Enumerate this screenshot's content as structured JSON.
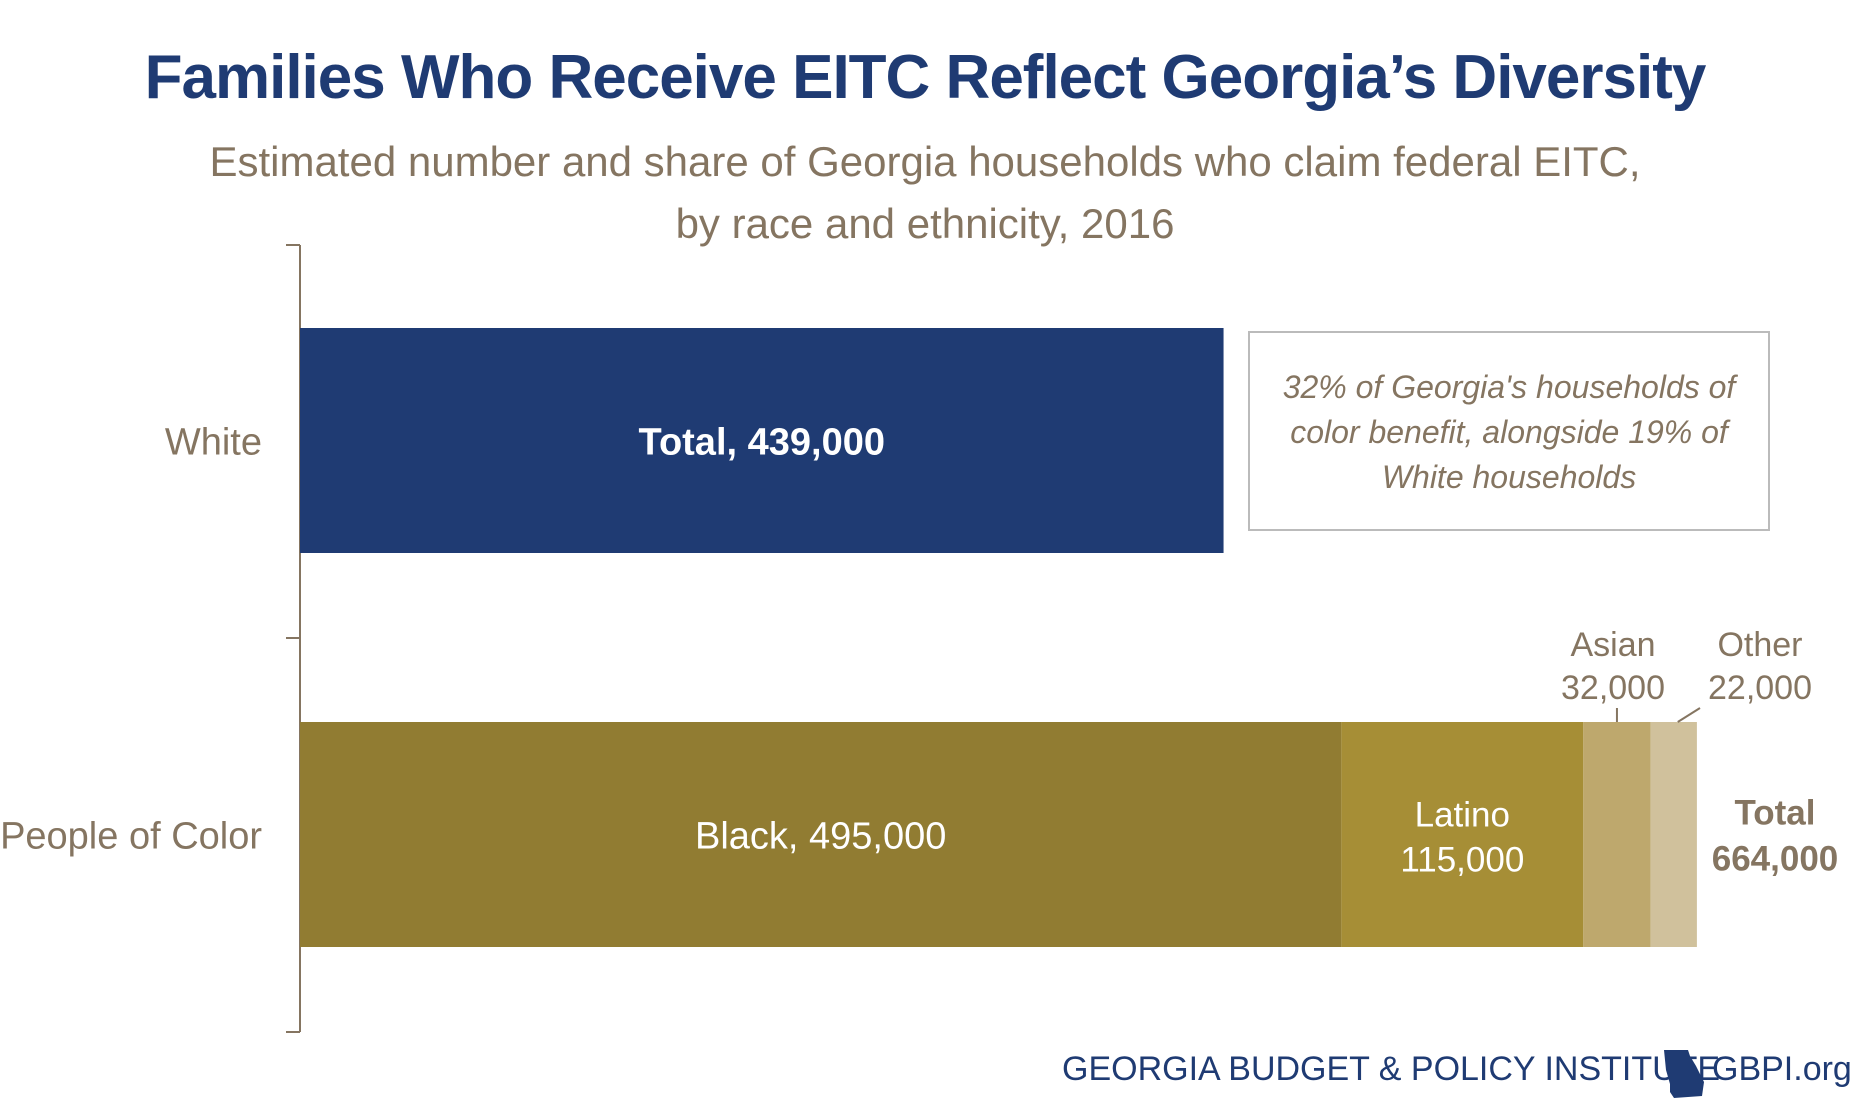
{
  "title": "Families Who Receive EITC Reflect Georgia’s Diversity",
  "subtitle_line1": "Estimated number and share of Georgia households who claim federal EITC,",
  "subtitle_line2": "by race and ethnicity, 2016",
  "colors": {
    "title": "#1f3b73",
    "text": "#857561",
    "white_bar": "#1f3b73",
    "black": "#917c32",
    "latino": "#a68e36",
    "asian": "#bea86d",
    "other": "#d0c19c"
  },
  "chart_data": {
    "type": "bar",
    "orientation": "horizontal",
    "stacked": true,
    "categories": [
      "White",
      "People of Color"
    ],
    "series": [
      {
        "name": "White",
        "values": [
          439000,
          0
        ]
      },
      {
        "name": "Black",
        "values": [
          0,
          495000
        ]
      },
      {
        "name": "Latino",
        "values": [
          0,
          115000
        ]
      },
      {
        "name": "Asian",
        "values": [
          0,
          32000
        ]
      },
      {
        "name": "Other",
        "values": [
          0,
          22000
        ]
      }
    ],
    "xlim": [
      0,
      665000
    ],
    "grid": false,
    "bar_labels": {
      "white_total": "Total, 439,000",
      "black": "Black, 495,000",
      "latino_name": "Latino",
      "latino_value": "115,000",
      "asian_name": "Asian",
      "asian_value": "32,000",
      "other_name": "Other",
      "other_value": "22,000",
      "poc_total_word": "Total",
      "poc_total_value": "664,000"
    },
    "annotation": {
      "line1": "32% of Georgia's households of",
      "line2": "color benefit, alongside 19% of",
      "line3": "White households"
    }
  },
  "footer": {
    "org": "GEORGIA BUDGET & POLICY INSTITUTE",
    "site": "GBPI.org",
    "logo_icon": "georgia-state-icon"
  }
}
